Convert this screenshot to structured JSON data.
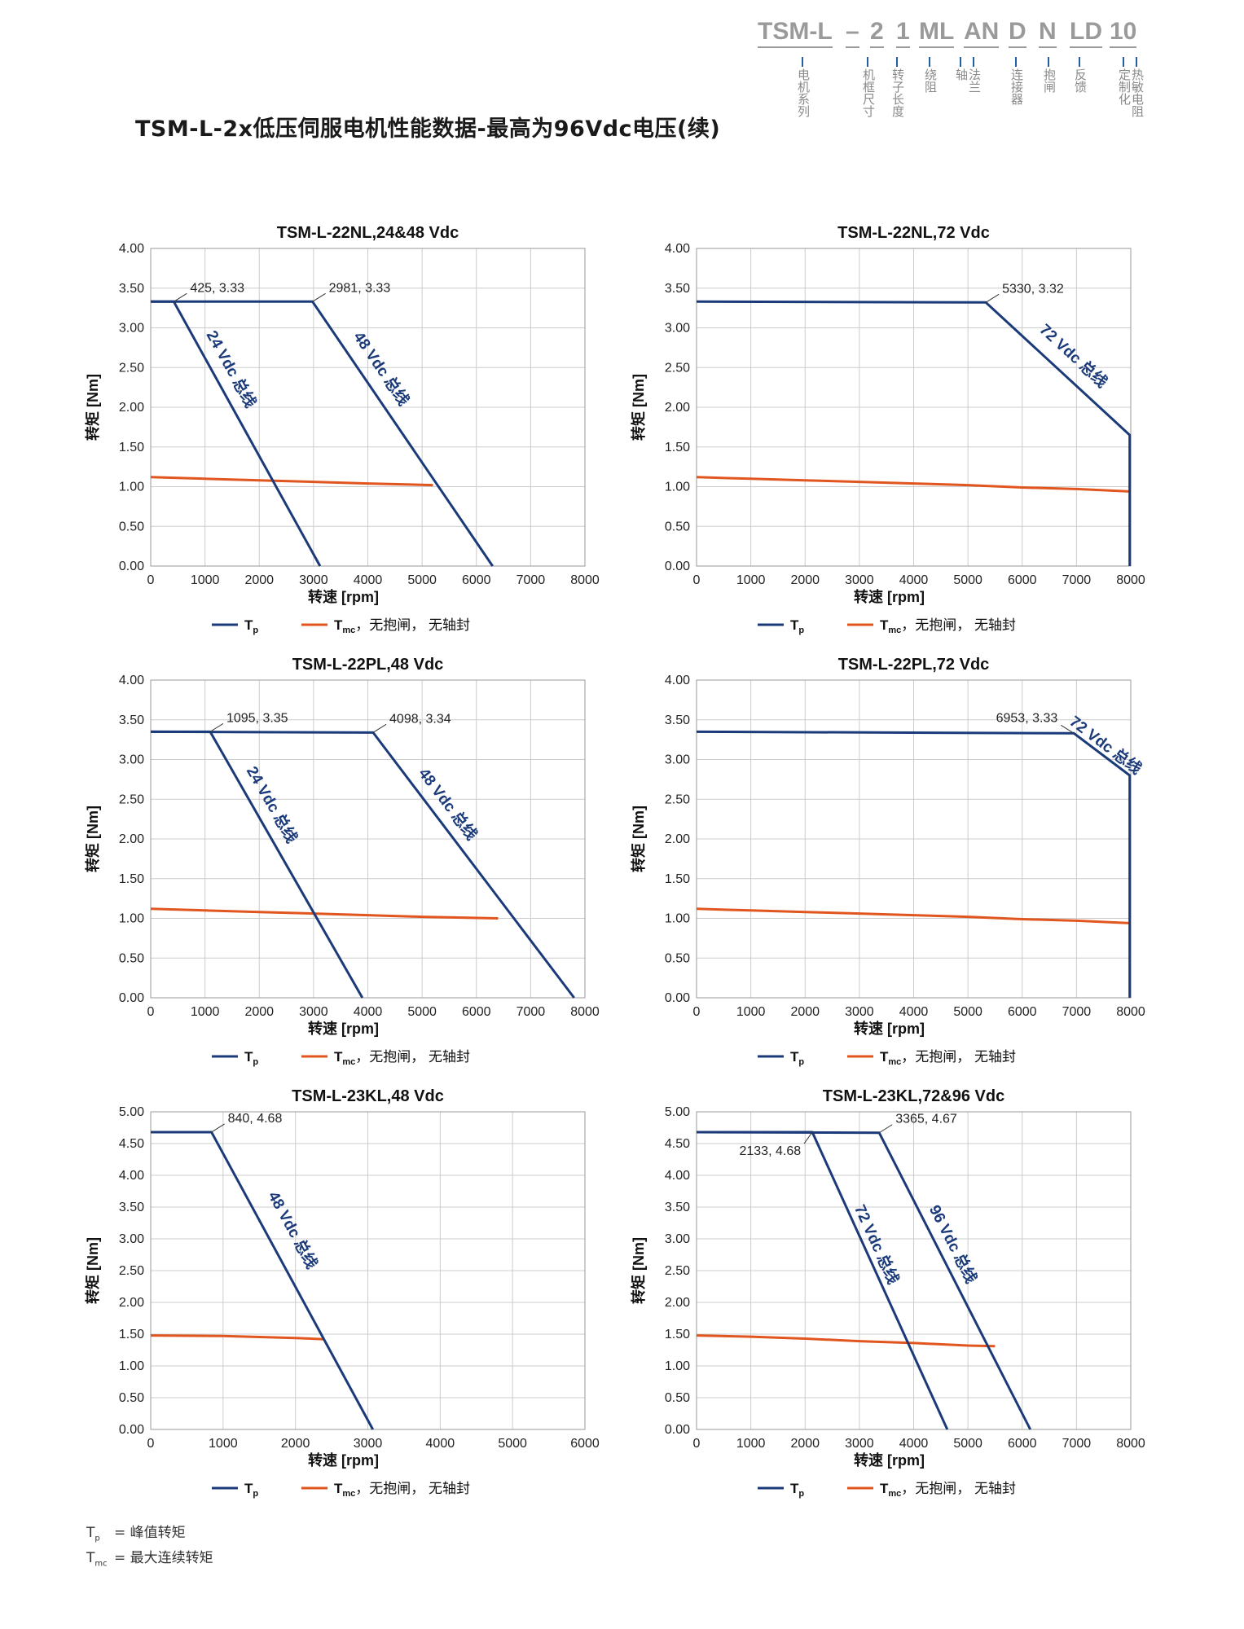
{
  "page": {
    "title": "TSM-L-2x低压伺服电机性能数据-最高为96Vdc电压(续)"
  },
  "code_header": {
    "codes": [
      "TSM-L",
      "–",
      "2",
      "1",
      "ML",
      "AN",
      "D",
      "N",
      "LD",
      "10"
    ],
    "descriptions": [
      "电机系列",
      "机框尺寸",
      "转子长度",
      "绕阻",
      "轴",
      "法兰",
      "连接器",
      "抱闸",
      "反馈",
      "定制化",
      "热敏电阻"
    ]
  },
  "common": {
    "ylabel": "转矩 [Nm]",
    "xlabel": "转速 [rpm]",
    "legend_tp_sym": "T",
    "legend_tp_sub": "p",
    "legend_tmc_sym": "T",
    "legend_tmc_sub": "mc",
    "legend_tmc_text": "，无抱闸， 无轴封",
    "legend_tmc_text_alt": "，无抱闸， 无轴封",
    "colors": {
      "tp": "#1b3a7a",
      "tmc": "#e0561e",
      "grid": "#cccccc",
      "frame": "#999999"
    }
  },
  "footnote": {
    "tp_sym": "T",
    "tp_sub": "p",
    "tp_text": "= 峰值转矩",
    "tmc_sym": "T",
    "tmc_sub": "mc",
    "tmc_text": "= 最大连续转矩"
  },
  "chart_data": [
    {
      "type": "line",
      "title": "TSM-L-22NL,24&48 Vdc",
      "xlabel": "转速 [rpm]",
      "ylabel": "转矩 [Nm]",
      "xlim": [
        0,
        8000
      ],
      "ylim": [
        0,
        4
      ],
      "xticks": [
        0,
        1000,
        2000,
        3000,
        4000,
        5000,
        6000,
        7000,
        8000
      ],
      "xtick_labels": [
        "0",
        "1000",
        "2000",
        "3000",
        "4000",
        "5000",
        "6000",
        "7000",
        "8000"
      ],
      "yticks": [
        0,
        0.5,
        1,
        1.5,
        2,
        2.5,
        3,
        3.5,
        4
      ],
      "ytick_labels": [
        "0.00",
        "0.50",
        "1.00",
        "1.50",
        "2.00",
        "2.50",
        "3.00",
        "3.50",
        "4.00"
      ],
      "grid": true,
      "series": [
        {
          "kind": "tp",
          "x": [
            0,
            425,
            3120
          ],
          "y": [
            3.33,
            3.33,
            0
          ]
        },
        {
          "kind": "tp",
          "x": [
            0,
            2981,
            6300
          ],
          "y": [
            3.33,
            3.33,
            0
          ]
        },
        {
          "kind": "tmc",
          "x": [
            0,
            1000,
            2000,
            3000,
            4000,
            5200
          ],
          "y": [
            1.12,
            1.1,
            1.08,
            1.06,
            1.04,
            1.02
          ]
        }
      ],
      "annotations": [
        {
          "text": "425, 3.33",
          "x": 425,
          "y": 3.33,
          "side": "right"
        },
        {
          "text": "2981, 3.33",
          "x": 2981,
          "y": 3.33,
          "side": "right"
        }
      ],
      "curve_labels": [
        {
          "text": "24 Vdc 总线",
          "x": 1400,
          "y": 2.45
        },
        {
          "text": "48 Vdc 总线",
          "x": 4170,
          "y": 2.45
        }
      ]
    },
    {
      "type": "line",
      "title": "TSM-L-22NL,72 Vdc",
      "xlabel": "转速 [rpm]",
      "ylabel": "转矩 [Nm]",
      "xlim": [
        0,
        8000
      ],
      "ylim": [
        0,
        4
      ],
      "xticks": [
        0,
        1000,
        2000,
        3000,
        4000,
        5000,
        6000,
        7000,
        8000
      ],
      "xtick_labels": [
        "0",
        "1000",
        "2000",
        "3000",
        "4000",
        "5000",
        "6000",
        "7000",
        "8000"
      ],
      "yticks": [
        0,
        0.5,
        1,
        1.5,
        2,
        2.5,
        3,
        3.5,
        4
      ],
      "ytick_labels": [
        "0.00",
        "0.50",
        "1.00",
        "1.50",
        "2.00",
        "2.50",
        "3.00",
        "3.50",
        "4.00"
      ],
      "grid": true,
      "series": [
        {
          "kind": "tp",
          "x": [
            0,
            5330,
            7980,
            7980
          ],
          "y": [
            3.33,
            3.32,
            1.65,
            0
          ]
        },
        {
          "kind": "tmc",
          "x": [
            0,
            1000,
            2000,
            3000,
            4000,
            5000,
            6000,
            7000,
            7980
          ],
          "y": [
            1.12,
            1.1,
            1.08,
            1.06,
            1.04,
            1.02,
            0.99,
            0.97,
            0.94
          ]
        }
      ],
      "annotations": [
        {
          "text": "5330, 3.32",
          "x": 5330,
          "y": 3.32,
          "side": "right"
        }
      ],
      "curve_labels": [
        {
          "text": "72 Vdc 总线",
          "x": 6880,
          "y": 2.6
        }
      ]
    },
    {
      "type": "line",
      "title": "TSM-L-22PL,48 Vdc",
      "xlabel": "转速 [rpm]",
      "ylabel": "转矩 [Nm]",
      "xlim": [
        0,
        8000
      ],
      "ylim": [
        0,
        4
      ],
      "xticks": [
        0,
        1000,
        2000,
        3000,
        4000,
        5000,
        6000,
        7000,
        8000
      ],
      "xtick_labels": [
        "0",
        "1000",
        "2000",
        "3000",
        "4000",
        "5000",
        "6000",
        "7000",
        "8000"
      ],
      "yticks": [
        0,
        0.5,
        1,
        1.5,
        2,
        2.5,
        3,
        3.5,
        4
      ],
      "ytick_labels": [
        "0.00",
        "0.50",
        "1.00",
        "1.50",
        "2.00",
        "2.50",
        "3.00",
        "3.50",
        "4.00"
      ],
      "grid": true,
      "series": [
        {
          "kind": "tp",
          "x": [
            0,
            1095,
            3900
          ],
          "y": [
            3.35,
            3.35,
            0
          ]
        },
        {
          "kind": "tp",
          "x": [
            0,
            4098,
            7800
          ],
          "y": [
            3.35,
            3.34,
            0
          ]
        },
        {
          "kind": "tmc",
          "x": [
            0,
            1000,
            2000,
            3000,
            4000,
            5000,
            6400
          ],
          "y": [
            1.12,
            1.1,
            1.08,
            1.06,
            1.04,
            1.02,
            1.0
          ]
        }
      ],
      "annotations": [
        {
          "text": "1095, 3.35",
          "x": 1095,
          "y": 3.35,
          "side": "right"
        },
        {
          "text": "4098, 3.34",
          "x": 4098,
          "y": 3.34,
          "side": "right"
        }
      ],
      "curve_labels": [
        {
          "text": "24 Vdc 总线",
          "x": 2150,
          "y": 2.4
        },
        {
          "text": "48 Vdc 总线",
          "x": 5400,
          "y": 2.4
        }
      ]
    },
    {
      "type": "line",
      "title": "TSM-L-22PL,72 Vdc",
      "xlabel": "转速 [rpm]",
      "ylabel": "转矩 [Nm]",
      "xlim": [
        0,
        8000
      ],
      "ylim": [
        0,
        4
      ],
      "xticks": [
        0,
        1000,
        2000,
        3000,
        4000,
        5000,
        6000,
        7000,
        8000
      ],
      "xtick_labels": [
        "0",
        "1000",
        "2000",
        "3000",
        "4000",
        "5000",
        "6000",
        "7000",
        "8000"
      ],
      "yticks": [
        0,
        0.5,
        1,
        1.5,
        2,
        2.5,
        3,
        3.5,
        4
      ],
      "ytick_labels": [
        "0.00",
        "0.50",
        "1.00",
        "1.50",
        "2.00",
        "2.50",
        "3.00",
        "3.50",
        "4.00"
      ],
      "grid": true,
      "series": [
        {
          "kind": "tp",
          "x": [
            0,
            6953,
            7980,
            7980
          ],
          "y": [
            3.35,
            3.33,
            2.8,
            0
          ]
        },
        {
          "kind": "tmc",
          "x": [
            0,
            1000,
            2000,
            3000,
            4000,
            5000,
            6000,
            7000,
            7980
          ],
          "y": [
            1.12,
            1.1,
            1.08,
            1.06,
            1.04,
            1.02,
            0.99,
            0.97,
            0.94
          ]
        }
      ],
      "annotations": [
        {
          "text": "6953, 3.33",
          "x": 6953,
          "y": 3.33,
          "side": "left"
        }
      ],
      "curve_labels": [
        {
          "text": "72 Vdc 总线",
          "x": 7480,
          "y": 3.13
        }
      ]
    },
    {
      "type": "line",
      "title": "TSM-L-23KL,48 Vdc",
      "xlabel": "转速 [rpm]",
      "ylabel": "转矩 [Nm]",
      "xlim": [
        0,
        6000
      ],
      "ylim": [
        0,
        5
      ],
      "xticks": [
        0,
        1000,
        2000,
        3000,
        4000,
        5000,
        6000
      ],
      "xtick_labels": [
        "0",
        "1000",
        "2000",
        "3000",
        "4000",
        "5000",
        "6000"
      ],
      "yticks": [
        0,
        0.5,
        1,
        1.5,
        2,
        2.5,
        3,
        3.5,
        4,
        4.5,
        5
      ],
      "ytick_labels": [
        "0.00",
        "0.50",
        "1.00",
        "1.50",
        "2.00",
        "2.50",
        "3.00",
        "3.50",
        "4.00",
        "4.50",
        "5.00"
      ],
      "grid": true,
      "series": [
        {
          "kind": "tp",
          "x": [
            0,
            840,
            3070
          ],
          "y": [
            4.68,
            4.68,
            0
          ]
        },
        {
          "kind": "tmc",
          "x": [
            0,
            1000,
            2000,
            2400
          ],
          "y": [
            1.48,
            1.47,
            1.44,
            1.42
          ]
        }
      ],
      "annotations": [
        {
          "text": "840, 4.68",
          "x": 840,
          "y": 4.68,
          "side": "right"
        }
      ],
      "curve_labels": [
        {
          "text": "48 Vdc 总线",
          "x": 1900,
          "y": 3.1
        }
      ]
    },
    {
      "type": "line",
      "title": "TSM-L-23KL,72&96 Vdc",
      "xlabel": "转速 [rpm]",
      "ylabel": "转矩 [Nm]",
      "xlim": [
        0,
        8000
      ],
      "ylim": [
        0,
        5
      ],
      "xticks": [
        0,
        1000,
        2000,
        3000,
        4000,
        5000,
        6000,
        7000,
        8000
      ],
      "xtick_labels": [
        "0",
        "1000",
        "2000",
        "3000",
        "4000",
        "5000",
        "6000",
        "7000",
        "8000"
      ],
      "yticks": [
        0,
        0.5,
        1,
        1.5,
        2,
        2.5,
        3,
        3.5,
        4,
        4.5,
        5
      ],
      "ytick_labels": [
        "0.00",
        "0.50",
        "1.00",
        "1.50",
        "2.00",
        "2.50",
        "3.00",
        "3.50",
        "4.00",
        "4.50",
        "5.00"
      ],
      "grid": true,
      "series": [
        {
          "kind": "tp",
          "x": [
            0,
            2133,
            4620
          ],
          "y": [
            4.68,
            4.68,
            0
          ]
        },
        {
          "kind": "tp",
          "x": [
            0,
            3365,
            6150
          ],
          "y": [
            4.68,
            4.67,
            0
          ]
        },
        {
          "kind": "tmc",
          "x": [
            0,
            1000,
            2000,
            3000,
            4000,
            5000,
            5500
          ],
          "y": [
            1.48,
            1.46,
            1.43,
            1.39,
            1.36,
            1.32,
            1.31
          ]
        }
      ],
      "annotations": [
        {
          "text": "2133, 4.68",
          "x": 2133,
          "y": 4.68,
          "side": "below-left"
        },
        {
          "text": "3365, 4.67",
          "x": 3365,
          "y": 4.67,
          "side": "right"
        }
      ],
      "curve_labels": [
        {
          "text": "72 Vdc 总线",
          "x": 3230,
          "y": 2.88
        },
        {
          "text": "96 Vdc 总线",
          "x": 4640,
          "y": 2.88
        }
      ]
    }
  ]
}
